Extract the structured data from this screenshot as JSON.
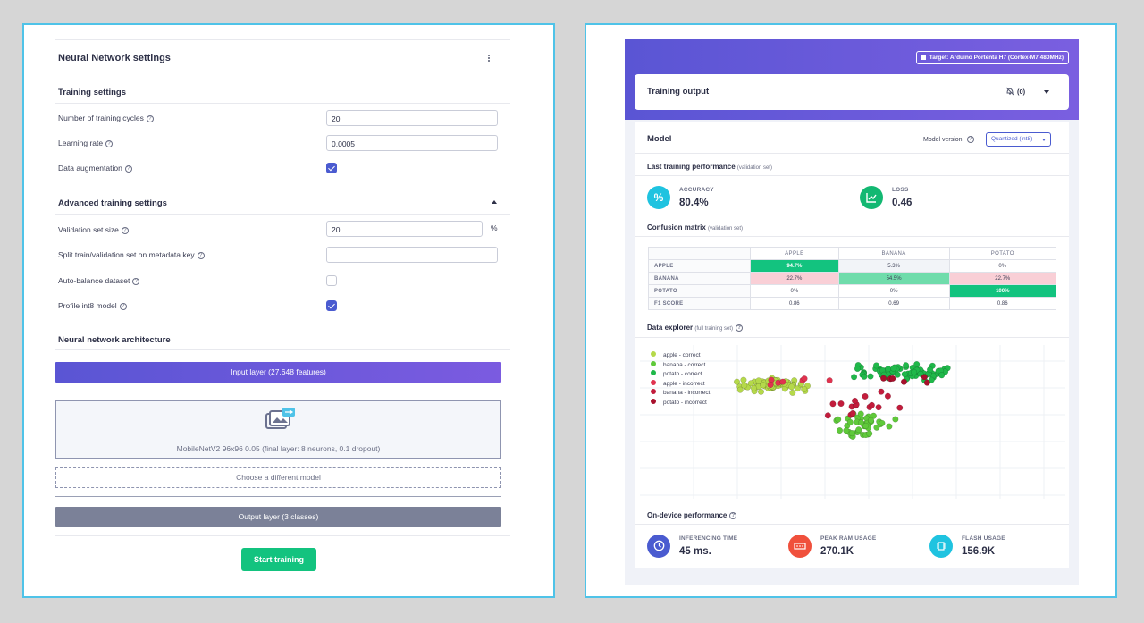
{
  "left": {
    "title": "Neural Network settings",
    "training_settings": "Training settings",
    "cycles_label": "Number of training cycles",
    "cycles_value": "20",
    "lr_label": "Learning rate",
    "lr_value": "0.0005",
    "augment_label": "Data augmentation",
    "advanced": "Advanced training settings",
    "val_label": "Validation set size",
    "val_value": "20",
    "val_unit": "%",
    "split_label": "Split train/validation set on metadata key",
    "split_value": "",
    "balance_label": "Auto-balance dataset",
    "profile_label": "Profile int8 model",
    "arch_title": "Neural network architecture",
    "input_layer": "Input layer (27,648 features)",
    "model_desc": "MobileNetV2 96x96 0.05 (final layer: 8 neurons, 0.1 dropout)",
    "choose_model": "Choose a different model",
    "output_layer": "Output layer (3 classes)",
    "start_training": "Start training",
    "help": "?",
    "icons": {
      "menu": "kebab-menu-icon",
      "collapse": "caret-up-icon",
      "model": "image-stack-icon",
      "help": "question-circle-icon"
    }
  },
  "right": {
    "target": "Target: Arduino Portenta H7 (Cortex-M7 480MHz)",
    "training_output": "Training output",
    "notif_count": "(0)",
    "model": "Model",
    "model_version_label": "Model version:",
    "model_version": "Quantized (int8)",
    "last_perf": "Last training performance",
    "last_perf_sub": "(validation set)",
    "accuracy_label": "ACCURACY",
    "accuracy_value": "80.4%",
    "loss_label": "LOSS",
    "loss_value": "0.46",
    "cm_title": "Confusion matrix",
    "cm_sub": "(validation set)",
    "cm": {
      "cols": [
        "APPLE",
        "BANANA",
        "POTATO"
      ],
      "rows": [
        {
          "label": "APPLE",
          "cells": [
            "94.7%",
            "5.3%",
            "0%"
          ]
        },
        {
          "label": "BANANA",
          "cells": [
            "22.7%",
            "54.5%",
            "22.7%"
          ]
        },
        {
          "label": "POTATO",
          "cells": [
            "0%",
            "0%",
            "100%"
          ]
        },
        {
          "label": "F1 SCORE",
          "cells": [
            "0.86",
            "0.69",
            "0.86"
          ]
        }
      ]
    },
    "explorer_title": "Data explorer",
    "explorer_sub": "(full training set)",
    "legend": [
      {
        "label": "apple - correct",
        "color": "#b5d94a"
      },
      {
        "label": "banana - correct",
        "color": "#5fc93a"
      },
      {
        "label": "potato - correct",
        "color": "#1fb84a"
      },
      {
        "label": "apple - incorrect",
        "color": "#e0334f"
      },
      {
        "label": "banana - incorrect",
        "color": "#c21c3c"
      },
      {
        "label": "potato - incorrect",
        "color": "#a8102c"
      }
    ],
    "ondevice_title": "On-device performance",
    "inference_label": "INFERENCING TIME",
    "inference_value": "45 ms.",
    "ram_label": "PEAK RAM USAGE",
    "ram_value": "270.1K",
    "flash_label": "FLASH USAGE",
    "flash_value": "156.9K",
    "colors": {
      "header": "#6a5ae0",
      "accuracy": "#1fc3e0",
      "loss": "#13b872",
      "inference": "#4a5bd0",
      "ram": "#f0503c",
      "flash": "#1fc3e0",
      "cm_high": "#13c37f",
      "cm_mid": "#6fdcab",
      "cm_bad": "#f9cfd6"
    },
    "icons": {
      "target": "chip-icon",
      "notif": "bell-off-icon",
      "dropdown": "caret-down-icon",
      "accuracy": "percent-icon",
      "loss": "trend-chart-icon",
      "inference": "clock-icon",
      "ram": "memory-icon",
      "flash": "chip-icon"
    }
  }
}
